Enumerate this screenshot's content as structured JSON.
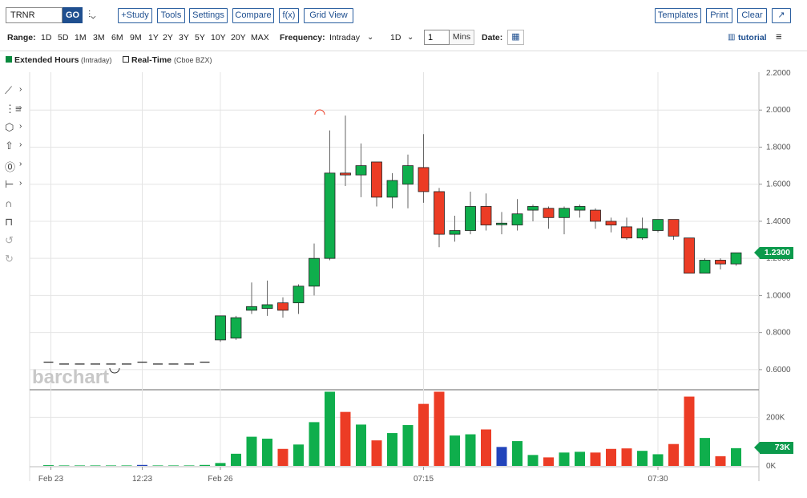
{
  "toolbar": {
    "symbol": "TRNR",
    "go": "GO",
    "study": "+Study",
    "tools": "Tools",
    "settings": "Settings",
    "compare": "Compare",
    "fx": "f(x)",
    "grid_view": "Grid View",
    "templates": "Templates",
    "print": "Print",
    "clear": "Clear",
    "expand_icon": "↗"
  },
  "range_bar": {
    "range_label": "Range:",
    "ranges": [
      "1D",
      "5D",
      "1M",
      "3M",
      "6M",
      "9M",
      "1Y",
      "2Y",
      "3Y",
      "5Y",
      "10Y",
      "20Y",
      "MAX"
    ],
    "frequency_label": "Frequency:",
    "frequency_value": "Intraday",
    "period_value": "1D",
    "interval_value": "1",
    "interval_unit": "Mins",
    "date_label": "Date:",
    "tutorial": "tutorial"
  },
  "legend": {
    "extended": "Extended Hours",
    "extended_sub": "(Intraday)",
    "realtime": "Real-Time",
    "realtime_sub": "(Cboe BZX)"
  },
  "watermark": "barchart",
  "colors": {
    "up": "#0fae4c",
    "down": "#ec3c25",
    "neutral": "#2244bb",
    "tag": "#0b9a4c",
    "accent": "#1d4e8f"
  },
  "chart_data": {
    "type": "candlestick",
    "ylim": [
      0.5,
      2.2
    ],
    "yticks": [
      0.6,
      0.8,
      1.0,
      1.2,
      1.4,
      1.6,
      1.8,
      2.0,
      2.2
    ],
    "ytick_labels": [
      "0.6000",
      "0.8000",
      "1.0000",
      "1.2000",
      "1.4000",
      "1.6000",
      "1.8000",
      "2.0000",
      "2.2000"
    ],
    "last_price": "1.2300",
    "last_value": 1.23,
    "xtick_labels": [
      "Feb 23",
      "12:23",
      "Feb 26",
      "07:15",
      "07:30"
    ],
    "volume": {
      "ylim": [
        0,
        300000
      ],
      "ytick_labels": [
        "0K",
        "200K"
      ],
      "yticks": [
        0,
        200000
      ],
      "last_label": "73K",
      "last_value": 73000
    },
    "dashes": [
      {
        "idx": 0,
        "v": 0.64
      },
      {
        "idx": 1,
        "v": 0.63
      },
      {
        "idx": 2,
        "v": 0.63
      },
      {
        "idx": 3,
        "v": 0.63
      },
      {
        "idx": 4,
        "v": 0.63
      },
      {
        "idx": 5,
        "v": 0.63
      },
      {
        "idx": 6,
        "v": 0.64
      },
      {
        "idx": 7,
        "v": 0.63
      },
      {
        "idx": 8,
        "v": 0.63
      },
      {
        "idx": 9,
        "v": 0.63
      },
      {
        "idx": 10,
        "v": 0.64
      }
    ],
    "candles": [
      {
        "idx": 11,
        "o": 0.76,
        "h": 0.89,
        "l": 0.75,
        "c": 0.89,
        "vol": 12000
      },
      {
        "idx": 12,
        "o": 0.77,
        "h": 0.89,
        "l": 0.76,
        "c": 0.88,
        "vol": 50000
      },
      {
        "idx": 13,
        "o": 0.92,
        "h": 1.07,
        "l": 0.9,
        "c": 0.94,
        "vol": 120000
      },
      {
        "idx": 14,
        "o": 0.93,
        "h": 1.08,
        "l": 0.89,
        "c": 0.95,
        "vol": 112000
      },
      {
        "idx": 15,
        "o": 0.96,
        "h": 0.99,
        "l": 0.88,
        "c": 0.92,
        "vol": 70000
      },
      {
        "idx": 16,
        "o": 0.96,
        "h": 1.06,
        "l": 0.9,
        "c": 1.05,
        "vol": 88000
      },
      {
        "idx": 17,
        "o": 1.05,
        "h": 1.28,
        "l": 1.0,
        "c": 1.2,
        "vol": 180000
      },
      {
        "idx": 18,
        "o": 1.2,
        "h": 1.89,
        "l": 1.19,
        "c": 1.66,
        "vol": 305000
      },
      {
        "idx": 19,
        "o": 1.66,
        "h": 1.97,
        "l": 1.59,
        "c": 1.65,
        "vol": 222000
      },
      {
        "idx": 20,
        "o": 1.65,
        "h": 1.82,
        "l": 1.53,
        "c": 1.7,
        "vol": 170000
      },
      {
        "idx": 21,
        "o": 1.72,
        "h": 1.72,
        "l": 1.48,
        "c": 1.53,
        "vol": 105000
      },
      {
        "idx": 22,
        "o": 1.53,
        "h": 1.66,
        "l": 1.47,
        "c": 1.62,
        "vol": 135000
      },
      {
        "idx": 23,
        "o": 1.6,
        "h": 1.76,
        "l": 1.47,
        "c": 1.7,
        "vol": 168000
      },
      {
        "idx": 24,
        "o": 1.69,
        "h": 1.87,
        "l": 1.5,
        "c": 1.56,
        "vol": 255000
      },
      {
        "idx": 25,
        "o": 1.56,
        "h": 1.58,
        "l": 1.26,
        "c": 1.33,
        "vol": 305000
      },
      {
        "idx": 26,
        "o": 1.33,
        "h": 1.43,
        "l": 1.29,
        "c": 1.35,
        "vol": 125000
      },
      {
        "idx": 27,
        "o": 1.35,
        "h": 1.56,
        "l": 1.33,
        "c": 1.48,
        "vol": 130000
      },
      {
        "idx": 28,
        "o": 1.48,
        "h": 1.55,
        "l": 1.35,
        "c": 1.38,
        "vol": 150000
      },
      {
        "idx": 29,
        "o": 1.39,
        "h": 1.45,
        "l": 1.33,
        "c": 1.39,
        "vol": 78000
      },
      {
        "idx": 30,
        "o": 1.38,
        "h": 1.52,
        "l": 1.35,
        "c": 1.44,
        "vol": 102000
      },
      {
        "idx": 31,
        "o": 1.46,
        "h": 1.49,
        "l": 1.4,
        "c": 1.48,
        "vol": 45000
      },
      {
        "idx": 32,
        "o": 1.47,
        "h": 1.48,
        "l": 1.36,
        "c": 1.42,
        "vol": 35000
      },
      {
        "idx": 33,
        "o": 1.42,
        "h": 1.48,
        "l": 1.33,
        "c": 1.47,
        "vol": 55000
      },
      {
        "idx": 34,
        "o": 1.46,
        "h": 1.49,
        "l": 1.42,
        "c": 1.48,
        "vol": 58000
      },
      {
        "idx": 35,
        "o": 1.46,
        "h": 1.47,
        "l": 1.36,
        "c": 1.4,
        "vol": 55000
      },
      {
        "idx": 36,
        "o": 1.4,
        "h": 1.42,
        "l": 1.34,
        "c": 1.38,
        "vol": 70000
      },
      {
        "idx": 37,
        "o": 1.37,
        "h": 1.42,
        "l": 1.3,
        "c": 1.31,
        "vol": 72000
      },
      {
        "idx": 38,
        "o": 1.31,
        "h": 1.42,
        "l": 1.3,
        "c": 1.36,
        "vol": 62000
      },
      {
        "idx": 39,
        "o": 1.35,
        "h": 1.41,
        "l": 1.34,
        "c": 1.41,
        "vol": 48000
      },
      {
        "idx": 40,
        "o": 1.41,
        "h": 1.41,
        "l": 1.3,
        "c": 1.32,
        "vol": 90000
      },
      {
        "idx": 41,
        "o": 1.31,
        "h": 1.31,
        "l": 1.12,
        "c": 1.12,
        "vol": 285000
      },
      {
        "idx": 42,
        "o": 1.12,
        "h": 1.2,
        "l": 1.12,
        "c": 1.19,
        "vol": 115000
      },
      {
        "idx": 43,
        "o": 1.19,
        "h": 1.2,
        "l": 1.14,
        "c": 1.17,
        "vol": 40000
      },
      {
        "idx": 44,
        "o": 1.17,
        "h": 1.23,
        "l": 1.16,
        "c": 1.23,
        "vol": 73000
      }
    ],
    "small_volumes": [
      {
        "idx": 0,
        "vol": 3000
      },
      {
        "idx": 1,
        "vol": 2000
      },
      {
        "idx": 2,
        "vol": 2000
      },
      {
        "idx": 3,
        "vol": 2000
      },
      {
        "idx": 4,
        "vol": 2000
      },
      {
        "idx": 5,
        "vol": 2000
      },
      {
        "idx": 6,
        "vol": 4000
      },
      {
        "idx": 7,
        "vol": 2000
      },
      {
        "idx": 8,
        "vol": 2000
      },
      {
        "idx": 9,
        "vol": 2000
      },
      {
        "idx": 10,
        "vol": 4000
      }
    ],
    "neutral_volume_idx": 29,
    "xtick_idx": [
      0,
      6,
      11,
      24,
      39
    ]
  }
}
